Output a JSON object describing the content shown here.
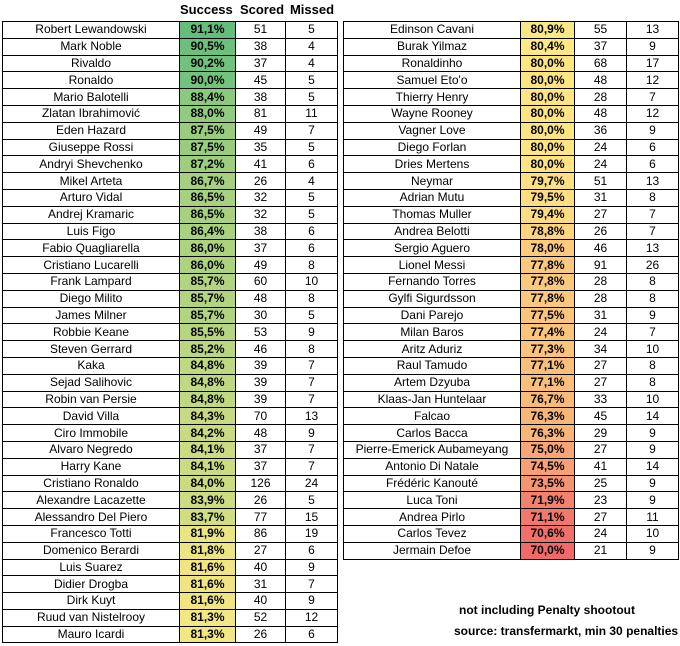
{
  "chart_data": {
    "type": "table",
    "columns": [
      "Success",
      "Scored",
      "Missed"
    ],
    "rows": [
      {
        "name": "Robert Lewandowski",
        "success": "91,1%",
        "scored": 51,
        "missed": 5
      },
      {
        "name": "Mark Noble",
        "success": "90,5%",
        "scored": 38,
        "missed": 4
      },
      {
        "name": "Rivaldo",
        "success": "90,2%",
        "scored": 37,
        "missed": 4
      },
      {
        "name": "Ronaldo",
        "success": "90,0%",
        "scored": 45,
        "missed": 5
      },
      {
        "name": "Mario Balotelli",
        "success": "88,4%",
        "scored": 38,
        "missed": 5
      },
      {
        "name": "Zlatan Ibrahimović",
        "success": "88,0%",
        "scored": 81,
        "missed": 11
      },
      {
        "name": "Eden Hazard",
        "success": "87,5%",
        "scored": 49,
        "missed": 7
      },
      {
        "name": "Giuseppe Rossi",
        "success": "87,5%",
        "scored": 35,
        "missed": 5
      },
      {
        "name": "Andryi Shevchenko",
        "success": "87,2%",
        "scored": 41,
        "missed": 6
      },
      {
        "name": "Mikel Arteta",
        "success": "86,7%",
        "scored": 26,
        "missed": 4
      },
      {
        "name": "Arturo Vidal",
        "success": "86,5%",
        "scored": 32,
        "missed": 5
      },
      {
        "name": "Andrej Kramaric",
        "success": "86,5%",
        "scored": 32,
        "missed": 5
      },
      {
        "name": "Luis Figo",
        "success": "86,4%",
        "scored": 38,
        "missed": 6
      },
      {
        "name": "Fabio Quagliarella",
        "success": "86,0%",
        "scored": 37,
        "missed": 6
      },
      {
        "name": "Cristiano Lucarelli",
        "success": "86,0%",
        "scored": 49,
        "missed": 8
      },
      {
        "name": "Frank Lampard",
        "success": "85,7%",
        "scored": 60,
        "missed": 10
      },
      {
        "name": "Diego Milito",
        "success": "85,7%",
        "scored": 48,
        "missed": 8
      },
      {
        "name": "James Milner",
        "success": "85,7%",
        "scored": 30,
        "missed": 5
      },
      {
        "name": "Robbie Keane",
        "success": "85,5%",
        "scored": 53,
        "missed": 9
      },
      {
        "name": "Steven Gerrard",
        "success": "85,2%",
        "scored": 46,
        "missed": 8
      },
      {
        "name": "Kaka",
        "success": "84,8%",
        "scored": 39,
        "missed": 7
      },
      {
        "name": "Sejad Salihovic",
        "success": "84,8%",
        "scored": 39,
        "missed": 7
      },
      {
        "name": "Robin van Persie",
        "success": "84,8%",
        "scored": 39,
        "missed": 7
      },
      {
        "name": "David Villa",
        "success": "84,3%",
        "scored": 70,
        "missed": 13
      },
      {
        "name": "Ciro Immobile",
        "success": "84,2%",
        "scored": 48,
        "missed": 9
      },
      {
        "name": "Alvaro Negredo",
        "success": "84,1%",
        "scored": 37,
        "missed": 7
      },
      {
        "name": "Harry Kane",
        "success": "84,1%",
        "scored": 37,
        "missed": 7
      },
      {
        "name": "Cristiano Ronaldo",
        "success": "84,0%",
        "scored": 126,
        "missed": 24
      },
      {
        "name": "Alexandre Lacazette",
        "success": "83,9%",
        "scored": 26,
        "missed": 5
      },
      {
        "name": "Alessandro Del Piero",
        "success": "83,7%",
        "scored": 77,
        "missed": 15
      },
      {
        "name": "Francesco Totti",
        "success": "81,9%",
        "scored": 86,
        "missed": 19
      },
      {
        "name": "Domenico Berardi",
        "success": "81,8%",
        "scored": 27,
        "missed": 6
      },
      {
        "name": "Luis Suarez",
        "success": "81,6%",
        "scored": 40,
        "missed": 9
      },
      {
        "name": "Didier Drogba",
        "success": "81,6%",
        "scored": 31,
        "missed": 7
      },
      {
        "name": "Dirk Kuyt",
        "success": "81,6%",
        "scored": 40,
        "missed": 9
      },
      {
        "name": "Ruud van Nistelrooy",
        "success": "81,3%",
        "scored": 52,
        "missed": 12
      },
      {
        "name": "Mauro Icardi",
        "success": "81,3%",
        "scored": 26,
        "missed": 6
      },
      {
        "name": "Edinson Cavani",
        "success": "80,9%",
        "scored": 55,
        "missed": 13
      },
      {
        "name": "Burak Yilmaz",
        "success": "80,4%",
        "scored": 37,
        "missed": 9
      },
      {
        "name": "Ronaldinho",
        "success": "80,0%",
        "scored": 68,
        "missed": 17
      },
      {
        "name": "Samuel Eto'o",
        "success": "80,0%",
        "scored": 48,
        "missed": 12
      },
      {
        "name": "Thierry Henry",
        "success": "80,0%",
        "scored": 28,
        "missed": 7
      },
      {
        "name": "Wayne Rooney",
        "success": "80,0%",
        "scored": 48,
        "missed": 12
      },
      {
        "name": "Vagner Love",
        "success": "80,0%",
        "scored": 36,
        "missed": 9
      },
      {
        "name": "Diego Forlan",
        "success": "80,0%",
        "scored": 24,
        "missed": 6
      },
      {
        "name": "Dries Mertens",
        "success": "80,0%",
        "scored": 24,
        "missed": 6
      },
      {
        "name": "Neymar",
        "success": "79,7%",
        "scored": 51,
        "missed": 13
      },
      {
        "name": "Adrian Mutu",
        "success": "79,5%",
        "scored": 31,
        "missed": 8
      },
      {
        "name": "Thomas Muller",
        "success": "79,4%",
        "scored": 27,
        "missed": 7
      },
      {
        "name": "Andrea Belotti",
        "success": "78,8%",
        "scored": 26,
        "missed": 7
      },
      {
        "name": "Sergio Aguero",
        "success": "78,0%",
        "scored": 46,
        "missed": 13
      },
      {
        "name": "Lionel Messi",
        "success": "77,8%",
        "scored": 91,
        "missed": 26
      },
      {
        "name": "Fernando Torres",
        "success": "77,8%",
        "scored": 28,
        "missed": 8
      },
      {
        "name": "Gylfi Sigurdsson",
        "success": "77,8%",
        "scored": 28,
        "missed": 8
      },
      {
        "name": "Dani Parejo",
        "success": "77,5%",
        "scored": 31,
        "missed": 9
      },
      {
        "name": "Milan Baros",
        "success": "77,4%",
        "scored": 24,
        "missed": 7
      },
      {
        "name": "Aritz Aduriz",
        "success": "77,3%",
        "scored": 34,
        "missed": 10
      },
      {
        "name": "Raul Tamudo",
        "success": "77,1%",
        "scored": 27,
        "missed": 8
      },
      {
        "name": "Artem Dzyuba",
        "success": "77,1%",
        "scored": 27,
        "missed": 8
      },
      {
        "name": "Klaas-Jan Huntelaar",
        "success": "76,7%",
        "scored": 33,
        "missed": 10
      },
      {
        "name": "Falcao",
        "success": "76,3%",
        "scored": 45,
        "missed": 14
      },
      {
        "name": "Carlos Bacca",
        "success": "76,3%",
        "scored": 29,
        "missed": 9
      },
      {
        "name": "Pierre-Emerick Aubameyang",
        "success": "75,0%",
        "scored": 27,
        "missed": 9
      },
      {
        "name": "Antonio Di Natale",
        "success": "74,5%",
        "scored": 41,
        "missed": 14
      },
      {
        "name": "Frédéric Kanouté",
        "success": "73,5%",
        "scored": 25,
        "missed": 9
      },
      {
        "name": "Luca Toni",
        "success": "71,9%",
        "scored": 23,
        "missed": 9
      },
      {
        "name": "Andrea Pirlo",
        "success": "71,1%",
        "scored": 27,
        "missed": 11
      },
      {
        "name": "Carlos Tevez",
        "success": "70,6%",
        "scored": 24,
        "missed": 10
      },
      {
        "name": "Jermain Defoe",
        "success": "70,0%",
        "scored": 21,
        "missed": 9
      }
    ]
  },
  "notes": {
    "line1": "not including Penalty shootout",
    "line2": "source: transfermarkt, min 30 penalties"
  }
}
